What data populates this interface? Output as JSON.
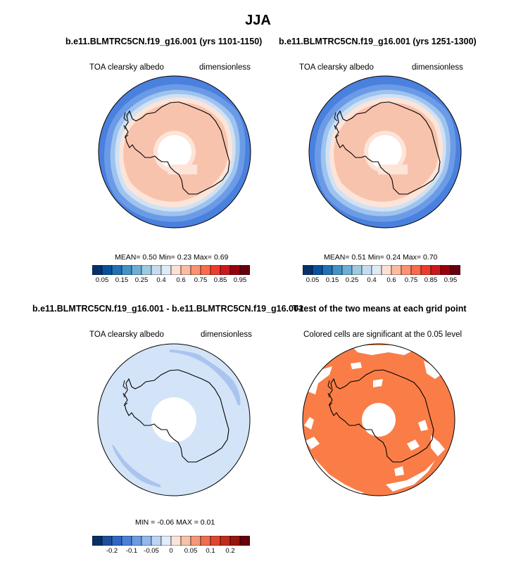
{
  "season": "JJA",
  "panels": {
    "p1": {
      "run": "b.e11.BLMTRC5CN.f19_g16.001 (yrs 1101-1150)",
      "variable": "TOA clearsky albedo",
      "units": "dimensionless",
      "stats": "MEAN=   0.50  Min=   0.23  Max=   0.69"
    },
    "p2": {
      "run": "b.e11.BLMTRC5CN.f19_g16.001 (yrs 1251-1300)",
      "variable": "TOA clearsky albedo",
      "units": "dimensionless",
      "stats": "MEAN=   0.51  Min=   0.24  Max=   0.70"
    },
    "p3": {
      "run": "b.e11.BLMTRC5CN.f19_g16.001 - b.e11.BLMTRC5CN.f19_g16.001",
      "variable": "TOA clearsky albedo",
      "units": "dimensionless",
      "stats": "MIN =  -0.06 MAX =  0.01"
    },
    "p4": {
      "run": "T-test of the two means at each grid point",
      "note": "Colored cells are significant at the 0.05 level"
    }
  },
  "colorbars": {
    "absolute": {
      "colors": [
        "#08306b",
        "#08519c",
        "#2171b5",
        "#4292c6",
        "#6baed6",
        "#9ecae1",
        "#c6dbef",
        "#deebf7",
        "#fee0d2",
        "#fcbba1",
        "#fc9272",
        "#fb6a4a",
        "#ef3b2c",
        "#cb181d",
        "#99000d",
        "#67000d"
      ],
      "tick_labels": [
        "0.05",
        "0.15",
        "0.25",
        "0.4",
        "0.6",
        "0.75",
        "0.85",
        "0.95"
      ]
    },
    "difference": {
      "colors": [
        "#053061",
        "#1f4e9c",
        "#2f66c4",
        "#4a80d6",
        "#6b9be0",
        "#92b8ec",
        "#bcd4f5",
        "#e0ecfb",
        "#fde4d8",
        "#f9c1a6",
        "#f5987a",
        "#ee6e4f",
        "#de4630",
        "#c12a1c",
        "#98140f",
        "#67000d"
      ],
      "tick_labels": [
        "-0.2",
        "-0.1",
        "-0.05",
        "0",
        "0.05",
        "0.1",
        "0.2"
      ]
    }
  },
  "map_colors": {
    "ocean_outer": "#4a80de",
    "ring2": "#6b9be6",
    "ring3": "#9ec3ee",
    "ring4": "#cfe1f5",
    "ring5": "#fde4d8",
    "interior": "#f8c3ad",
    "pole": "#ffffff",
    "diff_fill": "#d3e4f8",
    "diff_streak": "#a9c4ee",
    "ttest": "#fa7d47"
  }
}
